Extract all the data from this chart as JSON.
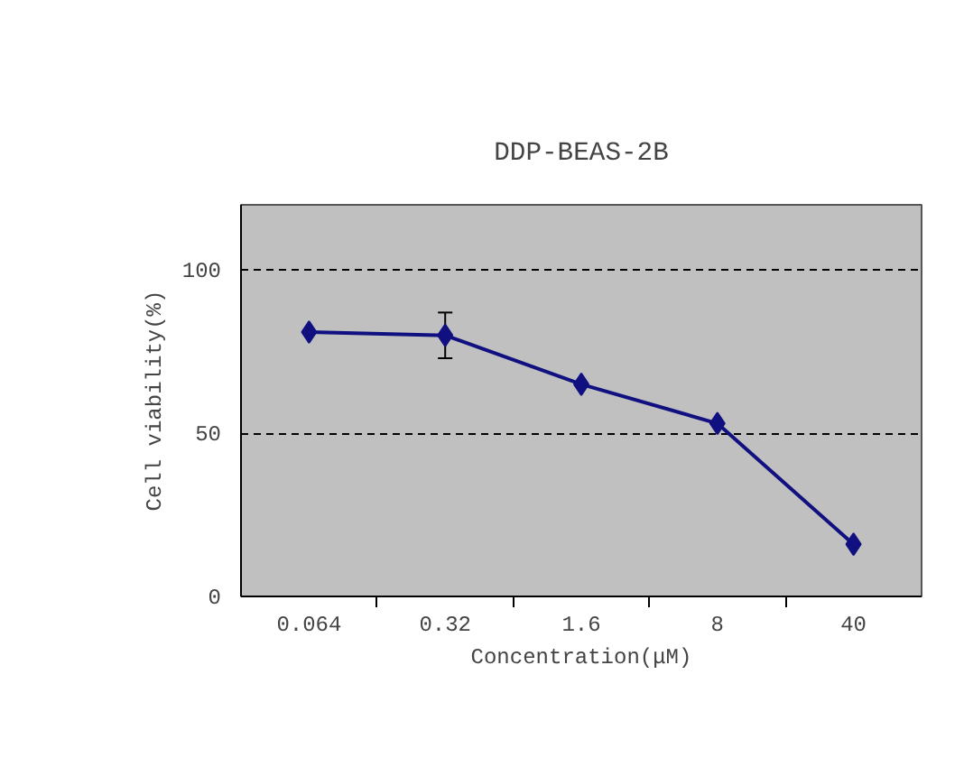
{
  "chart_data": {
    "type": "line",
    "title": "DDP-BEAS-2B",
    "xlabel": "Concentration(μM)",
    "ylabel": "Cell viability(%)",
    "categories": [
      "0.064",
      "0.32",
      "1.6",
      "8",
      "40"
    ],
    "series": [
      {
        "color": "#101080",
        "values": [
          81,
          80,
          65,
          53,
          16
        ],
        "errors": [
          null,
          7,
          null,
          null,
          null
        ]
      }
    ],
    "ylim": [
      0,
      120
    ],
    "yticks": [
      0,
      50,
      100
    ],
    "grid": "y",
    "marker": "diamond",
    "line_style": "solid"
  }
}
